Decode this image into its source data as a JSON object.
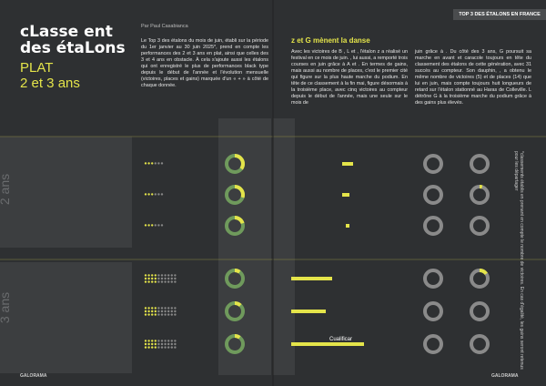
{
  "header": {
    "title_line1": "cLasse ent",
    "title_line2": "des étaLons",
    "subtitle_line1": "PLAT",
    "subtitle_line2": "2 et 3 ans",
    "byline": "Par Paul Casabianca",
    "section": "TOP 3 DES ÉTALONS EN FRANCE"
  },
  "intro": "Le Top 3 des étalons du mois de juin, établi sur la période du 1er janvier au 30 juin 2025*, prend en compte les performances des 2 et 3 ans en plat, ainsi que celles des 3 et 4 ans en obstacle. À cela s'ajoute aussi les étalons qui ont enregistré le plus de performances black type depuis le début de l'année et l'évolution mensuelle (victoires, places et gains) marquée d'un « + » à côté de chaque donnée.",
  "article": {
    "heading": "z et G mènent la danse",
    "column1": "Avec les victoires de B , L et , l'étalon z a réalisé un festival en ce mois de juin. , lui aussi, a remporté trois courses en juin grâce à A et . En termes de gains, mais aussi au nombre de places, c'est le premier cité qui figure sur la plus haute marche du podium. En tête de ce classement à la fin mai, figure désormais à la troisième place, avec cinq victoires au compteur depuis le début de l'année, mais une seule sur le mois de",
    "column2": "juin grâce à . Du côté des 3 ans, G poursuit sa marche en avant et caracole toujours en tête du classement des étalons de cette génération, avec 31 succès au compteur. Son dauphin, , a obtenu le même nombre de victoires (5) et de places (14) que lui en juin, mais compte toujours huit longueurs de retard sur l'étalon stationné au Haras de Colleville. L détrône G à la troisième marche du podium grâce à des gains plus élevés."
  },
  "sections": [
    "2 ans",
    "3 ans"
  ],
  "qualifier": "Cualificar",
  "footnote": "*classements établis en prenant en compte le nombre de victoires. En cas d'égalité, les gains seront retenus pour les départager",
  "logo_left": "GALORAMA",
  "logo_right": "GALORAMA"
}
